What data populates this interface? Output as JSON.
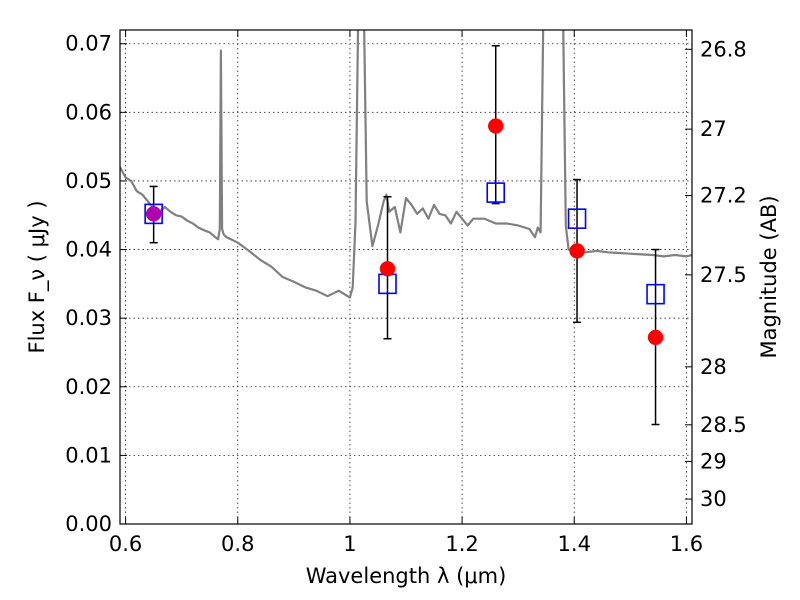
{
  "chart_data": {
    "type": "scatter",
    "title": "",
    "xlabel": "Wavelength  λ (μm)",
    "ylabel": "Flux  F_ν  ( μJy )",
    "y2label": "Magnitude (AB)",
    "xlim": [
      0.59,
      1.61
    ],
    "ylim": [
      0.0,
      0.072
    ],
    "grid": true,
    "x_ticks": [
      0.6,
      0.8,
      1.0,
      1.2,
      1.4,
      1.6
    ],
    "x_tick_labels": [
      "0.6",
      "0.8",
      "1",
      "1.2",
      "1.4",
      "1.6"
    ],
    "y_ticks": [
      0.0,
      0.01,
      0.02,
      0.03,
      0.04,
      0.05,
      0.06,
      0.07
    ],
    "y_tick_labels": [
      "0.00",
      "0.01",
      "0.02",
      "0.03",
      "0.04",
      "0.05",
      "0.06",
      "0.07"
    ],
    "mag_ticks": [
      26.8,
      27,
      27.2,
      27.5,
      28,
      28.5,
      29,
      30
    ],
    "mag_tick_labels": [
      "26.8",
      "27",
      "27.2",
      "27.5",
      "28",
      "28.5",
      "29",
      "30"
    ],
    "colors": {
      "model": "#808080",
      "observed": "#ff0000",
      "model_photometry": "#0000ff",
      "errorbar": "#000000",
      "first_point": "#b000b0"
    },
    "series": [
      {
        "name": "model spectrum",
        "kind": "line",
        "x": [
          0.59,
          0.6,
          0.61,
          0.62,
          0.63,
          0.64,
          0.65,
          0.66,
          0.67,
          0.68,
          0.69,
          0.7,
          0.71,
          0.72,
          0.73,
          0.74,
          0.75,
          0.76,
          0.765,
          0.768,
          0.77,
          0.772,
          0.775,
          0.78,
          0.79,
          0.8,
          0.82,
          0.84,
          0.86,
          0.88,
          0.9,
          0.92,
          0.94,
          0.96,
          0.98,
          1.0,
          1.005,
          1.01,
          1.015,
          1.02,
          1.025,
          1.03,
          1.04,
          1.05,
          1.06,
          1.065,
          1.07,
          1.08,
          1.09,
          1.1,
          1.11,
          1.12,
          1.13,
          1.14,
          1.15,
          1.16,
          1.17,
          1.18,
          1.19,
          1.2,
          1.21,
          1.22,
          1.24,
          1.26,
          1.28,
          1.3,
          1.32,
          1.33,
          1.335,
          1.34,
          1.345,
          1.35,
          1.36,
          1.37,
          1.38,
          1.385,
          1.39,
          1.4,
          1.42,
          1.44,
          1.46,
          1.48,
          1.5,
          1.52,
          1.54,
          1.56,
          1.58,
          1.6,
          1.61
        ],
        "y": [
          0.052,
          0.0505,
          0.05,
          0.0485,
          0.048,
          0.047,
          0.046,
          0.0455,
          0.0462,
          0.0455,
          0.045,
          0.0448,
          0.0442,
          0.0438,
          0.0432,
          0.0428,
          0.0425,
          0.0418,
          0.0415,
          0.043,
          0.069,
          0.043,
          0.0422,
          0.0418,
          0.0414,
          0.041,
          0.0398,
          0.0385,
          0.0375,
          0.036,
          0.0353,
          0.0345,
          0.034,
          0.0332,
          0.034,
          0.033,
          0.0345,
          0.044,
          0.075,
          0.075,
          0.075,
          0.047,
          0.0405,
          0.0435,
          0.047,
          0.048,
          0.0455,
          0.0462,
          0.0425,
          0.0475,
          0.0465,
          0.0452,
          0.046,
          0.0445,
          0.0465,
          0.0452,
          0.045,
          0.0438,
          0.0455,
          0.0445,
          0.0435,
          0.0445,
          0.0445,
          0.0438,
          0.0438,
          0.0435,
          0.043,
          0.0418,
          0.0432,
          0.0425,
          0.075,
          0.075,
          0.075,
          0.075,
          0.075,
          0.0435,
          0.04,
          0.0398,
          0.0396,
          0.0398,
          0.0396,
          0.0395,
          0.0394,
          0.0393,
          0.0392,
          0.039,
          0.0392,
          0.039,
          0.0392
        ]
      },
      {
        "name": "observed photometry",
        "kind": "points_with_errors",
        "x": [
          0.65,
          1.067,
          1.26,
          1.405,
          1.545
        ],
        "y": [
          0.0452,
          0.0372,
          0.058,
          0.0398,
          0.0272
        ],
        "yerr_low": [
          0.041,
          0.027,
          0.0467,
          0.0294,
          0.0145
        ],
        "yerr_high": [
          0.0492,
          0.0477,
          0.0697,
          0.0502,
          0.04
        ]
      },
      {
        "name": "model photometry",
        "kind": "open_squares",
        "x": [
          0.65,
          1.067,
          1.26,
          1.405,
          1.545
        ],
        "y": [
          0.0452,
          0.035,
          0.0483,
          0.0445,
          0.0335
        ]
      }
    ]
  }
}
